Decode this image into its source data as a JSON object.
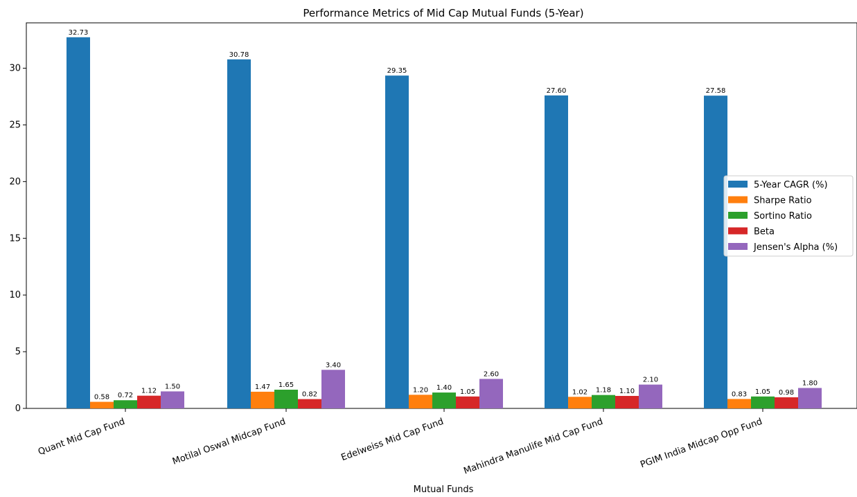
{
  "chart_data": {
    "type": "bar",
    "title": "Performance Metrics of Mid Cap Mutual Funds (5-Year)",
    "xlabel": "Mutual Funds",
    "ylabel": "",
    "ylim": [
      0,
      34
    ],
    "yticks": [
      0,
      5,
      10,
      15,
      20,
      25,
      30
    ],
    "grid": false,
    "legend_position": "center-right",
    "categories": [
      "Quant Mid Cap Fund",
      "Motilal Oswal Midcap Fund",
      "Edelweiss Mid Cap Fund",
      "Mahindra Manulife Mid Cap Fund",
      "PGIM India Midcap Opp Fund"
    ],
    "series": [
      {
        "name": "5-Year CAGR (%)",
        "color": "#1f77b4",
        "values": [
          32.73,
          30.78,
          29.35,
          27.6,
          27.58
        ],
        "labels": [
          "32.73",
          "30.78",
          "29.35",
          "27.60",
          "27.58"
        ]
      },
      {
        "name": "Sharpe Ratio",
        "color": "#ff7f0e",
        "values": [
          0.58,
          1.47,
          1.2,
          1.02,
          0.83
        ],
        "labels": [
          "0.58",
          "1.47",
          "1.20",
          "1.02",
          "0.83"
        ]
      },
      {
        "name": "Sortino Ratio",
        "color": "#2ca02c",
        "values": [
          0.72,
          1.65,
          1.4,
          1.18,
          1.05
        ],
        "labels": [
          "0.72",
          "1.65",
          "1.40",
          "1.18",
          "1.05"
        ]
      },
      {
        "name": "Beta",
        "color": "#d62728",
        "values": [
          1.12,
          0.82,
          1.05,
          1.1,
          0.98
        ],
        "labels": [
          "1.12",
          "0.82",
          "1.05",
          "1.10",
          "0.98"
        ]
      },
      {
        "name": "Jensen's Alpha (%)",
        "color": "#9467bd",
        "values": [
          1.5,
          3.4,
          2.6,
          2.1,
          1.8
        ],
        "labels": [
          "1.50",
          "3.40",
          "2.60",
          "2.10",
          "1.80"
        ]
      }
    ]
  }
}
